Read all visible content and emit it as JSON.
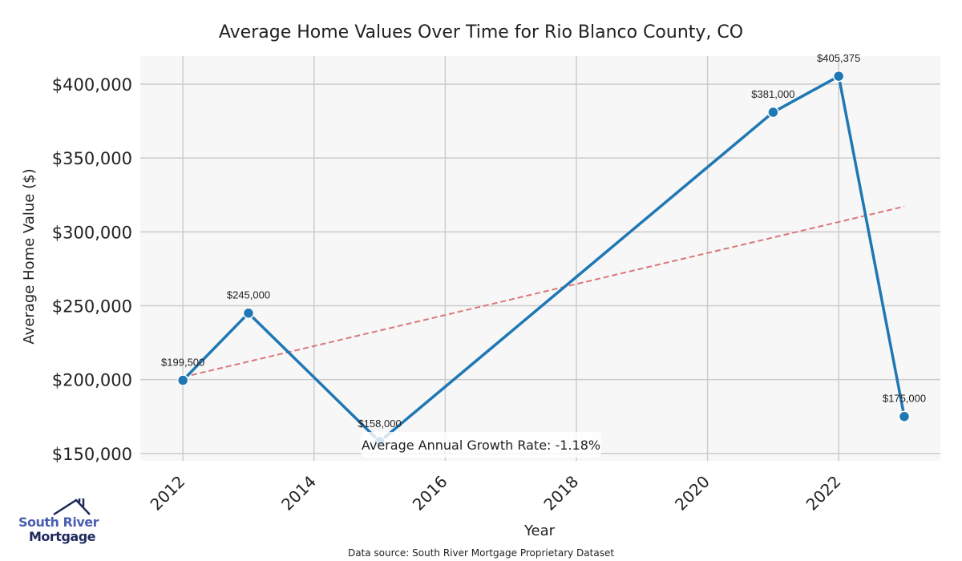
{
  "chart_data": {
    "type": "line",
    "title": "Average Home Values Over Time for Rio Blanco County, CO",
    "xlabel": "Year",
    "ylabel": "Average Home Value ($)",
    "x": [
      2012,
      2013,
      2015,
      2021,
      2022,
      2023
    ],
    "series": [
      {
        "name": "Average Home Value",
        "values": [
          199500,
          245000,
          158000,
          381000,
          405375,
          175000
        ],
        "color": "#1f77b4",
        "labels": [
          "$199,500",
          "$245,000",
          "$158,000",
          "$381,000",
          "$405,375",
          "$175,000"
        ]
      },
      {
        "name": "Trend",
        "x": [
          2012,
          2023
        ],
        "values": [
          201700,
          317200
        ],
        "color": "#d9777a",
        "style": "dashed"
      }
    ],
    "xticks": [
      2012,
      2014,
      2016,
      2018,
      2020,
      2022
    ],
    "xtick_labels": [
      "2012",
      "2014",
      "2016",
      "2018",
      "2020",
      "2022"
    ],
    "yticks": [
      150000,
      200000,
      250000,
      300000,
      350000,
      400000
    ],
    "ytick_labels": [
      "$150,000",
      "$200,000",
      "$250,000",
      "$300,000",
      "$350,000",
      "$400,000"
    ],
    "xlim": [
      2011.35,
      2023.55
    ],
    "ylim": [
      145000,
      419000
    ],
    "grid": true,
    "annotation": "Average Annual Growth Rate: -1.18%"
  },
  "footer": {
    "source": "Data source: South River Mortgage Proprietary Dataset"
  },
  "logo": {
    "line1": "South River",
    "line2": "Mortgage"
  }
}
